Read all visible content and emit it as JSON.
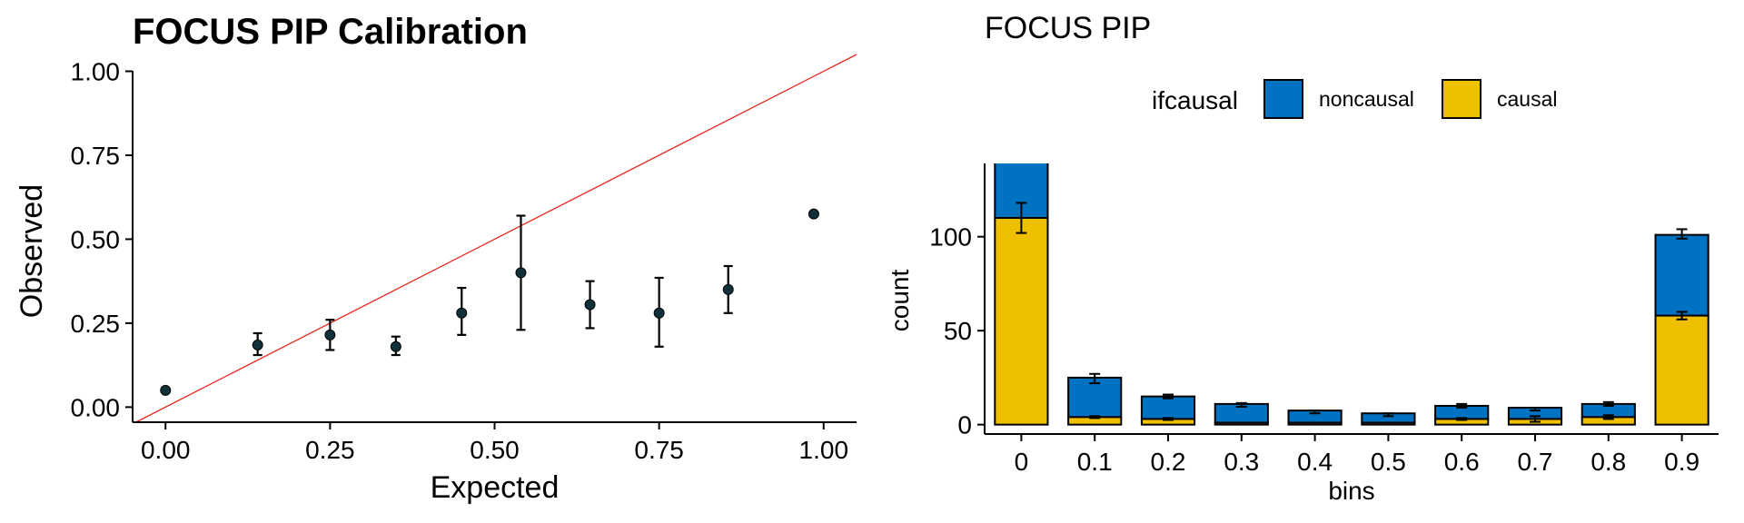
{
  "chart_data": [
    {
      "type": "scatter",
      "title": "FOCUS PIP Calibration",
      "xlabel": "Expected",
      "ylabel": "Observed",
      "xlim": [
        -0.05,
        1.05
      ],
      "ylim": [
        -0.045,
        1.05
      ],
      "xticks": [
        "0.00",
        "0.25",
        "0.50",
        "0.75",
        "1.00"
      ],
      "xtick_values": [
        0,
        0.25,
        0.5,
        0.75,
        1.0
      ],
      "yticks": [
        "0.00",
        "0.25",
        "0.50",
        "0.75",
        "1.00"
      ],
      "ytick_values": [
        0,
        0.25,
        0.5,
        0.75,
        1.0
      ],
      "reference_line": {
        "slope": 1,
        "intercept": 0,
        "color": "#e8281e"
      },
      "point_color": "#10303a",
      "points": [
        {
          "x": 0.0,
          "y": 0.05,
          "ymin": null,
          "ymax": null
        },
        {
          "x": 0.14,
          "y": 0.185,
          "ymin": 0.155,
          "ymax": 0.22
        },
        {
          "x": 0.25,
          "y": 0.215,
          "ymin": 0.17,
          "ymax": 0.26
        },
        {
          "x": 0.35,
          "y": 0.18,
          "ymin": 0.155,
          "ymax": 0.21
        },
        {
          "x": 0.45,
          "y": 0.28,
          "ymin": 0.215,
          "ymax": 0.355
        },
        {
          "x": 0.54,
          "y": 0.4,
          "ymin": 0.23,
          "ymax": 0.57
        },
        {
          "x": 0.645,
          "y": 0.305,
          "ymin": 0.235,
          "ymax": 0.375
        },
        {
          "x": 0.75,
          "y": 0.28,
          "ymin": 0.18,
          "ymax": 0.385
        },
        {
          "x": 0.855,
          "y": 0.35,
          "ymin": 0.28,
          "ymax": 0.42
        },
        {
          "x": 0.985,
          "y": 0.575,
          "ymin": null,
          "ymax": null
        }
      ],
      "grid": false
    },
    {
      "type": "bar",
      "stacked": true,
      "title": "FOCUS PIP",
      "xlabel": "bins",
      "ylabel": "count",
      "ylim": [
        -5,
        139
      ],
      "yticks": [
        "0",
        "50",
        "100"
      ],
      "ytick_values": [
        0,
        50,
        100
      ],
      "categories": [
        "0",
        "0.1",
        "0.2",
        "0.3",
        "0.4",
        "0.5",
        "0.6",
        "0.7",
        "0.8",
        "0.9"
      ],
      "legend": {
        "title": "ifcausal",
        "placement": "top",
        "entries": [
          {
            "label": "noncausal",
            "color": "#0072c2"
          },
          {
            "label": "causal",
            "color": "#efc000"
          }
        ]
      },
      "series": [
        {
          "name": "causal",
          "color": "#efc000",
          "values": [
            110,
            4,
            3,
            1,
            1,
            1,
            3,
            3,
            4,
            58
          ],
          "err_low": [
            102,
            3.5,
            2.5,
            null,
            null,
            null,
            2.5,
            1.5,
            3,
            56
          ],
          "err_high": [
            118,
            4.5,
            3.5,
            null,
            null,
            null,
            3.5,
            4.5,
            5,
            60
          ]
        },
        {
          "name": "noncausal",
          "color": "#0072c2",
          "values": [
            30,
            21,
            12,
            10,
            6.5,
            5,
            7,
            6,
            7,
            43
          ],
          "err_low": [
            null,
            22,
            14,
            9.5,
            6,
            4.5,
            9,
            7.5,
            10,
            99
          ],
          "err_high": [
            null,
            27,
            16,
            11.5,
            7.5,
            6,
            11,
            9,
            12,
            104
          ]
        }
      ],
      "grid": false
    }
  ]
}
